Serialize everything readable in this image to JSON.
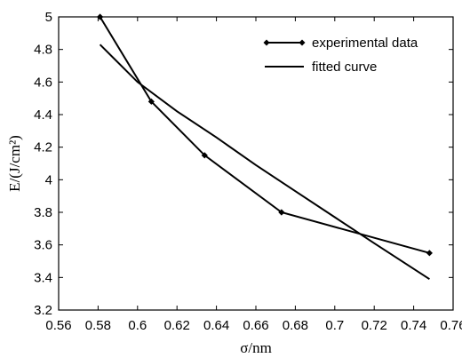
{
  "chart_data": {
    "type": "line",
    "title": "",
    "xlabel": "σ/nm",
    "ylabel": "E/(J/cm²)",
    "xlim": [
      0.56,
      0.76
    ],
    "ylim": [
      3.2,
      5.0
    ],
    "xticks": [
      0.56,
      0.58,
      0.6,
      0.62,
      0.64,
      0.66,
      0.68,
      0.7,
      0.72,
      0.74,
      0.76
    ],
    "yticks": [
      3.2,
      3.4,
      3.6,
      3.8,
      4.0,
      4.2,
      4.4,
      4.6,
      4.8,
      5.0
    ],
    "xtick_labels": [
      "0.56",
      "0.58",
      "0.6",
      "0.62",
      "0.64",
      "0.66",
      "0.68",
      "0.7",
      "0.72",
      "0.74",
      "0.76"
    ],
    "ytick_labels": [
      "3.2",
      "3.4",
      "3.6",
      "3.8",
      "4",
      "4.2",
      "4.4",
      "4.6",
      "4.8",
      "5"
    ],
    "grid": false,
    "legend_position": "top-right",
    "series": [
      {
        "name": "experimental data",
        "marker": "diamond",
        "color": "#000000",
        "x": [
          0.581,
          0.607,
          0.634,
          0.673,
          0.748
        ],
        "y": [
          5.0,
          4.48,
          4.15,
          3.8,
          3.55
        ]
      },
      {
        "name": "fitted curve",
        "marker": "none",
        "color": "#000000",
        "x": [
          0.581,
          0.6,
          0.62,
          0.64,
          0.66,
          0.68,
          0.7,
          0.72,
          0.748
        ],
        "y": [
          4.83,
          4.6,
          4.42,
          4.26,
          4.09,
          3.93,
          3.77,
          3.61,
          3.39
        ]
      }
    ]
  }
}
